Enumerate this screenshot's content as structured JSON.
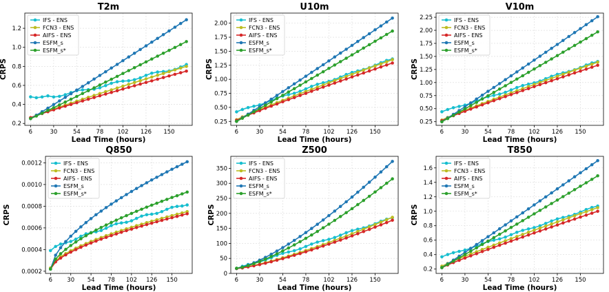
{
  "chart_data": [
    {
      "type": "line",
      "title": "T2m",
      "xlabel": "Lead Time (hours)",
      "ylabel": "CRPS",
      "xlim": [
        0,
        174
      ],
      "ylim": [
        0.18,
        1.36
      ],
      "xticks": [
        6,
        30,
        54,
        78,
        102,
        126,
        150
      ],
      "yticks": [
        0.2,
        0.4,
        0.6,
        0.8,
        1.0,
        1.2
      ],
      "ytick_labels": [
        "0.2",
        "0.4",
        "0.6",
        "0.8",
        "1.0",
        "1.2"
      ],
      "grid": true,
      "legend_position": "upper-left",
      "series": [
        {
          "name": "IFS - ENS",
          "color": "#17becf",
          "end": 0.81,
          "start": 0.48
        },
        {
          "name": "FCN3 - ENS",
          "color": "#bcbd22",
          "end": 0.8,
          "start": 0.26
        },
        {
          "name": "AIFS - ENS",
          "color": "#d62728",
          "end": 0.75,
          "start": 0.26
        },
        {
          "name": "ESFM_s",
          "color": "#1f77b4",
          "end": 1.29,
          "start": 0.25
        },
        {
          "name": "ESFM_s*",
          "color": "#2ca02c",
          "end": 1.06,
          "start": 0.25
        }
      ]
    },
    {
      "type": "line",
      "title": "U10m",
      "xlabel": "Lead Time (hours)",
      "ylabel": "CRPS",
      "xlim": [
        0,
        174
      ],
      "ylim": [
        0.18,
        2.18
      ],
      "xticks": [
        6,
        30,
        54,
        78,
        102,
        126,
        150
      ],
      "yticks": [
        0.25,
        0.5,
        0.75,
        1.0,
        1.25,
        1.5,
        1.75,
        2.0
      ],
      "ytick_labels": [
        "0.25",
        "0.50",
        "0.75",
        "1.00",
        "1.25",
        "1.50",
        "1.75",
        "2.00"
      ],
      "grid": true,
      "legend_position": "upper-left",
      "series": [
        {
          "name": "IFS - ENS",
          "color": "#17becf",
          "end": 1.36,
          "start": 0.42
        },
        {
          "name": "FCN3 - ENS",
          "color": "#bcbd22",
          "end": 1.35,
          "start": 0.28
        },
        {
          "name": "AIFS - ENS",
          "color": "#d62728",
          "end": 1.29,
          "start": 0.27
        },
        {
          "name": "ESFM_s",
          "color": "#1f77b4",
          "end": 2.09,
          "start": 0.25
        },
        {
          "name": "ESFM_s*",
          "color": "#2ca02c",
          "end": 1.86,
          "start": 0.25
        }
      ]
    },
    {
      "type": "line",
      "title": "V10m",
      "xlabel": "Lead Time (hours)",
      "ylabel": "CRPS",
      "xlim": [
        0,
        174
      ],
      "ylim": [
        0.18,
        2.33
      ],
      "xticks": [
        6,
        30,
        54,
        78,
        102,
        126,
        150
      ],
      "yticks": [
        0.25,
        0.5,
        0.75,
        1.0,
        1.25,
        1.5,
        1.75,
        2.0,
        2.25
      ],
      "ytick_labels": [
        "0.25",
        "0.50",
        "0.75",
        "1.00",
        "1.25",
        "1.50",
        "1.75",
        "2.00",
        "2.25"
      ],
      "grid": true,
      "legend_position": "upper-left",
      "series": [
        {
          "name": "IFS - ENS",
          "color": "#17becf",
          "end": 1.4,
          "start": 0.44
        },
        {
          "name": "FCN3 - ENS",
          "color": "#bcbd22",
          "end": 1.39,
          "start": 0.28
        },
        {
          "name": "AIFS - ENS",
          "color": "#d62728",
          "end": 1.33,
          "start": 0.27
        },
        {
          "name": "ESFM_s",
          "color": "#1f77b4",
          "end": 2.26,
          "start": 0.25
        },
        {
          "name": "ESFM_s*",
          "color": "#2ca02c",
          "end": 1.97,
          "start": 0.25
        }
      ]
    },
    {
      "type": "line",
      "title": "Q850",
      "xlabel": "Lead Time (hours)",
      "ylabel": "CRPS",
      "xlim": [
        0,
        174
      ],
      "ylim": [
        0.00018,
        0.00126
      ],
      "xticks": [
        6,
        30,
        54,
        78,
        102,
        126,
        150
      ],
      "yticks": [
        0.0002,
        0.0004,
        0.0006,
        0.0008,
        0.001,
        0.0012
      ],
      "ytick_labels": [
        "0.0002",
        "0.0004",
        "0.0006",
        "0.0008",
        "0.0010",
        "0.0012"
      ],
      "grid": true,
      "legend_position": "upper-left",
      "series": [
        {
          "name": "IFS - ENS",
          "color": "#17becf",
          "end": 0.00082,
          "start": 0.00039
        },
        {
          "name": "FCN3 - ENS",
          "color": "#bcbd22",
          "end": 0.00075,
          "start": 0.00023
        },
        {
          "name": "AIFS - ENS",
          "color": "#d62728",
          "end": 0.00073,
          "start": 0.00022
        },
        {
          "name": "ESFM_s",
          "color": "#1f77b4",
          "end": 0.00121,
          "start": 0.00022
        },
        {
          "name": "ESFM_s*",
          "color": "#2ca02c",
          "end": 0.00093,
          "start": 0.00022
        }
      ]
    },
    {
      "type": "line",
      "title": "Z500",
      "xlabel": "Lead Time (hours)",
      "ylabel": "CRPS",
      "xlim": [
        0,
        174
      ],
      "ylim": [
        0,
        390
      ],
      "xticks": [
        6,
        30,
        54,
        78,
        102,
        126,
        150
      ],
      "yticks": [
        0,
        50,
        100,
        150,
        200,
        250,
        300,
        350
      ],
      "ytick_labels": [
        "0",
        "50",
        "100",
        "150",
        "200",
        "250",
        "300",
        "350"
      ],
      "grid": true,
      "legend_position": "upper-left",
      "series": [
        {
          "name": "IFS - ENS",
          "color": "#17becf",
          "end": 185,
          "start": 16
        },
        {
          "name": "FCN3 - ENS",
          "color": "#bcbd22",
          "end": 187,
          "start": 17
        },
        {
          "name": "AIFS - ENS",
          "color": "#d62728",
          "end": 177,
          "start": 16
        },
        {
          "name": "ESFM_s",
          "color": "#1f77b4",
          "end": 373,
          "start": 17
        },
        {
          "name": "ESFM_s*",
          "color": "#2ca02c",
          "end": 315,
          "start": 17
        }
      ]
    },
    {
      "type": "line",
      "title": "T850",
      "xlabel": "Lead Time (hours)",
      "ylabel": "CRPS",
      "xlim": [
        0,
        174
      ],
      "ylim": [
        0.14,
        1.76
      ],
      "xticks": [
        6,
        30,
        54,
        78,
        102,
        126,
        150
      ],
      "yticks": [
        0.2,
        0.4,
        0.6,
        0.8,
        1.0,
        1.2,
        1.4,
        1.6
      ],
      "ytick_labels": [
        "0.2",
        "0.4",
        "0.6",
        "0.8",
        "1.0",
        "1.2",
        "1.4",
        "1.6"
      ],
      "grid": true,
      "legend_position": "upper-left",
      "series": [
        {
          "name": "IFS - ENS",
          "color": "#17becf",
          "end": 1.07,
          "start": 0.37
        },
        {
          "name": "FCN3 - ENS",
          "color": "#bcbd22",
          "end": 1.05,
          "start": 0.24
        },
        {
          "name": "AIFS - ENS",
          "color": "#d62728",
          "end": 1.0,
          "start": 0.22
        },
        {
          "name": "ESFM_s",
          "color": "#1f77b4",
          "end": 1.7,
          "start": 0.22
        },
        {
          "name": "ESFM_s*",
          "color": "#2ca02c",
          "end": 1.49,
          "start": 0.22
        }
      ]
    }
  ],
  "lead_times": [
    6,
    12,
    18,
    24,
    30,
    36,
    42,
    48,
    54,
    60,
    66,
    72,
    78,
    84,
    90,
    96,
    102,
    108,
    114,
    120,
    126,
    132,
    138,
    144,
    150,
    156,
    162,
    168
  ]
}
